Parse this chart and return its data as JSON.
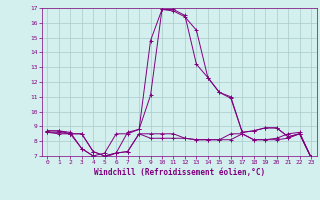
{
  "xlabel": "Windchill (Refroidissement éolien,°C)",
  "background_color": "#d4f0ee",
  "line_color": "#800080",
  "grid_color": "#aacccc",
  "ylim": [
    7,
    17
  ],
  "xlim": [
    -0.5,
    23.5
  ],
  "yticks": [
    7,
    8,
    9,
    10,
    11,
    12,
    13,
    14,
    15,
    16,
    17
  ],
  "xticks": [
    0,
    1,
    2,
    3,
    4,
    5,
    6,
    7,
    8,
    9,
    10,
    11,
    12,
    13,
    14,
    15,
    16,
    17,
    18,
    19,
    20,
    21,
    22,
    23
  ],
  "series1_x": [
    0,
    1,
    2,
    3,
    4,
    5,
    6,
    7,
    8,
    9,
    10,
    11,
    12,
    13,
    14,
    15,
    16,
    17,
    18,
    19,
    20,
    21,
    22,
    23
  ],
  "series1_y": [
    8.6,
    8.6,
    8.5,
    8.5,
    7.3,
    7.0,
    7.2,
    7.3,
    8.5,
    8.5,
    8.5,
    8.5,
    8.2,
    8.1,
    8.1,
    8.1,
    8.5,
    8.5,
    8.1,
    8.1,
    8.2,
    8.5,
    8.6,
    6.9
  ],
  "series2_x": [
    0,
    1,
    2,
    3,
    4,
    5,
    6,
    7,
    8,
    9,
    10,
    11,
    12,
    13,
    14,
    15,
    16,
    17,
    18,
    19,
    20,
    21,
    22,
    23
  ],
  "series2_y": [
    8.6,
    8.5,
    8.5,
    8.5,
    7.3,
    7.0,
    7.2,
    7.3,
    8.5,
    8.2,
    8.2,
    8.2,
    8.2,
    8.1,
    8.1,
    8.1,
    8.1,
    8.5,
    8.1,
    8.1,
    8.1,
    8.2,
    8.5,
    6.9
  ],
  "series3_x": [
    0,
    1,
    2,
    3,
    4,
    5,
    6,
    7,
    8,
    9,
    10,
    11,
    12,
    13,
    14,
    15,
    16,
    17,
    18,
    19,
    20,
    21,
    22,
    23
  ],
  "series3_y": [
    8.7,
    8.7,
    8.6,
    7.5,
    7.0,
    6.9,
    7.2,
    8.6,
    8.8,
    14.8,
    16.9,
    16.9,
    16.5,
    13.2,
    12.3,
    11.3,
    11.0,
    8.6,
    8.7,
    8.9,
    8.9,
    8.3,
    8.5,
    6.9
  ],
  "series4_x": [
    0,
    1,
    2,
    3,
    4,
    5,
    6,
    7,
    8,
    9,
    10,
    11,
    12,
    13,
    14,
    15,
    16,
    17,
    18,
    19,
    20,
    21,
    22,
    23
  ],
  "series4_y": [
    8.7,
    8.7,
    8.5,
    7.5,
    7.0,
    7.2,
    8.5,
    8.5,
    8.8,
    11.1,
    16.9,
    16.8,
    16.4,
    15.5,
    12.3,
    11.3,
    10.9,
    8.6,
    8.7,
    8.9,
    8.9,
    8.3,
    8.5,
    6.9
  ]
}
